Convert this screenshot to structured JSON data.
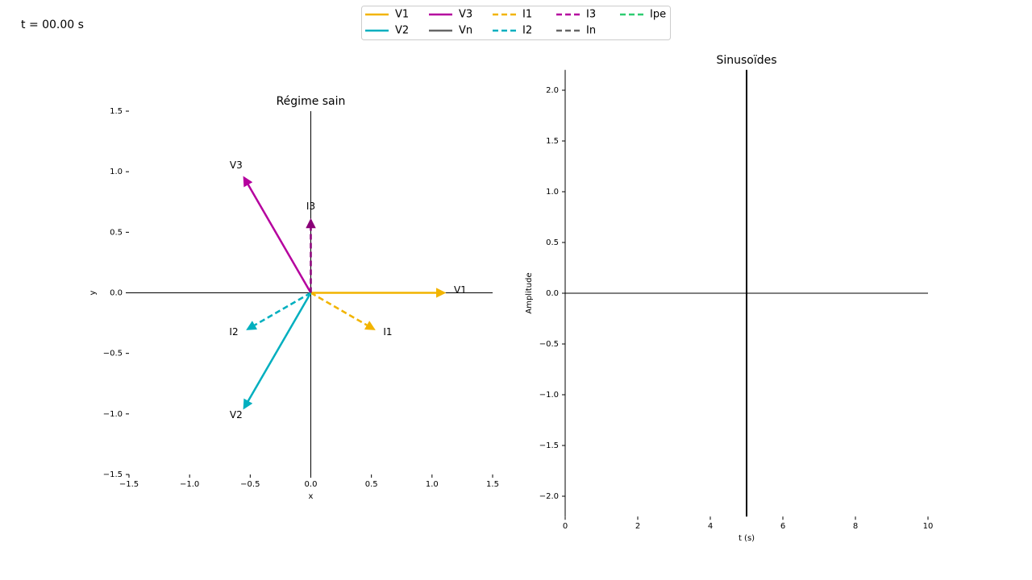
{
  "time_label": "t = 00.00 s",
  "legend": [
    {
      "name": "V1",
      "color": "#f2b400",
      "dash": false
    },
    {
      "name": "V2",
      "color": "#00afbf",
      "dash": false
    },
    {
      "name": "V3",
      "color": "#b5009e",
      "dash": false
    },
    {
      "name": "Vn",
      "color": "#666666",
      "dash": false
    },
    {
      "name": "I1",
      "color": "#f2b400",
      "dash": true
    },
    {
      "name": "I2",
      "color": "#00afbf",
      "dash": true
    },
    {
      "name": "I3",
      "color": "#b5009e",
      "dash": true
    },
    {
      "name": "In",
      "color": "#666666",
      "dash": true
    },
    {
      "name": "Ipe",
      "color": "#2ecc71",
      "dash": true
    }
  ],
  "chart_data": [
    {
      "type": "vector",
      "title": "Régime sain",
      "xlabel": "x",
      "ylabel": "y",
      "xlim": [
        -1.5,
        1.5
      ],
      "ylim": [
        -1.5,
        1.5
      ],
      "xticks": [
        {
          "value": -1.5,
          "label": "−1.5"
        },
        {
          "value": -1.0,
          "label": "−1.0"
        },
        {
          "value": -0.5,
          "label": "−0.5"
        },
        {
          "value": 0,
          "label": "0.0"
        },
        0.5,
        {
          "value": 1.0,
          "label": "1.0"
        },
        1.5
      ],
      "yticks": [
        {
          "value": -1.5,
          "label": "−1.5"
        },
        {
          "value": -1.0,
          "label": "−1.0"
        },
        {
          "value": -0.5,
          "label": "−0.5"
        },
        {
          "value": 0,
          "label": "0.0"
        },
        0.5,
        {
          "value": 1.0,
          "label": "1.0"
        },
        1.5
      ],
      "vectors": [
        {
          "name": "V1",
          "color": "#f2b400",
          "dash": false,
          "x": 1.1,
          "y": 0
        },
        {
          "name": "V2",
          "color": "#00afbf",
          "dash": false,
          "x": -0.55,
          "y": -0.95
        },
        {
          "name": "V3",
          "color": "#b5009e",
          "dash": false,
          "x": -0.55,
          "y": 0.95
        },
        {
          "name": "I1",
          "color": "#f2b400",
          "dash": true,
          "x": 0.52,
          "y": -0.3
        },
        {
          "name": "I2",
          "color": "#00afbf",
          "dash": true,
          "x": -0.52,
          "y": -0.3
        },
        {
          "name": "I3",
          "color": "#8a0078",
          "dash": true,
          "x": 0,
          "y": 0.6
        }
      ]
    },
    {
      "type": "line",
      "title": "Sinusoïdes",
      "xlabel": "t (s)",
      "ylabel": "Amplitude",
      "xlim": [
        0,
        10
      ],
      "ylim": [
        -2.2,
        2.2
      ],
      "xticks": [
        0,
        2,
        4,
        6,
        8,
        10
      ],
      "yticks": [
        {
          "value": -2.0,
          "label": "−2.0"
        },
        {
          "value": -1.5,
          "label": "−1.5"
        },
        {
          "value": -1.0,
          "label": "−1.0"
        },
        {
          "value": -0.5,
          "label": "−0.5"
        },
        {
          "value": 0,
          "label": "0.0"
        },
        0.5,
        {
          "value": 1.0,
          "label": "1.0"
        },
        1.5,
        {
          "value": 2.0,
          "label": "2.0"
        }
      ],
      "cursor_x": 5
    }
  ]
}
